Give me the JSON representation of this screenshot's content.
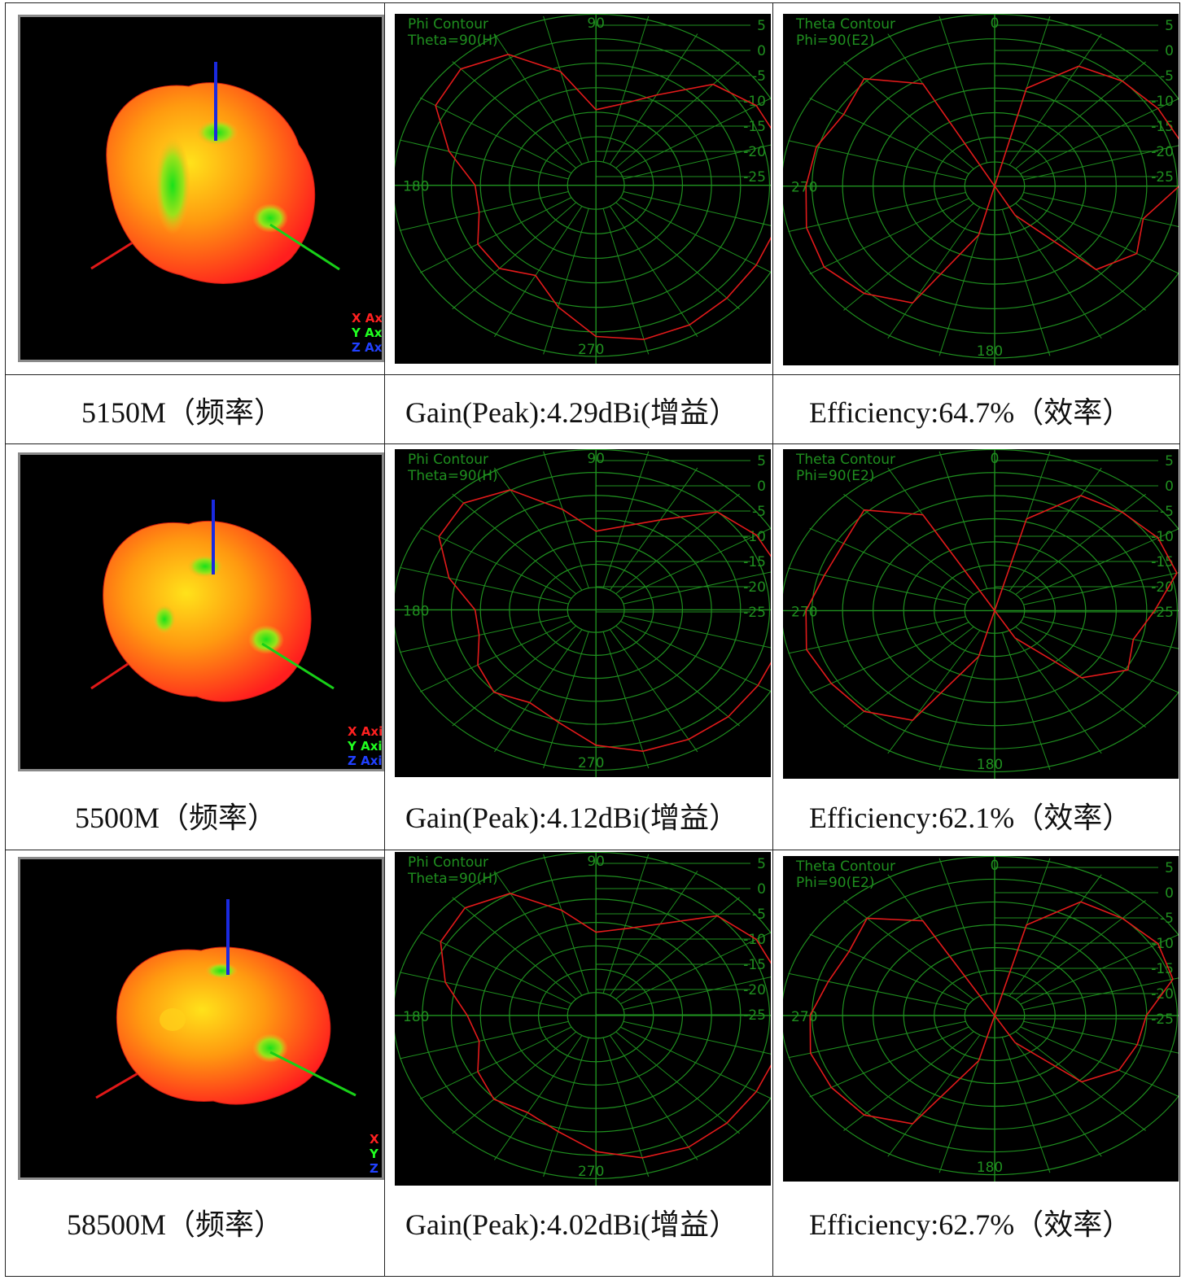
{
  "rows": [
    {
      "frequency": "5150M（频率）",
      "gain": "Gain(Peak):4.29dBi(增益）",
      "efficiency": "Efficiency:64.7%（效率）"
    },
    {
      "frequency": "5500M（频率）",
      "gain": "Gain(Peak):4.12dBi(增益）",
      "efficiency": "Efficiency:62.1%（效率）"
    },
    {
      "frequency": "58500M（频率）",
      "gain": "Gain(Peak):4.02dBi(增益）",
      "efficiency": "Efficiency:62.7%（效率）"
    }
  ],
  "phi_plot": {
    "title": "Phi Contour",
    "subtitle": "Theta=90(H)",
    "angle_labels": {
      "top": "90",
      "left": "180",
      "bottom": "270"
    },
    "scale_labels": [
      "5",
      "0",
      "-5",
      "-10",
      "-15",
      "-20",
      "-25"
    ]
  },
  "theta_plot": {
    "title": "Theta Contour",
    "subtitle": "Phi=90(E2)",
    "angle_labels": {
      "top": "0",
      "left": "270",
      "bottom": "180"
    },
    "scale_labels": [
      "5",
      "0",
      "-5",
      "-10",
      "-15",
      "-20",
      "-25"
    ]
  },
  "axis_legend": [
    "X Axis",
    "Y Axis",
    "Z Axis"
  ],
  "colors": {
    "grid": "#1f8f1f",
    "trace": "#e21a1a",
    "background": "#000000"
  }
}
